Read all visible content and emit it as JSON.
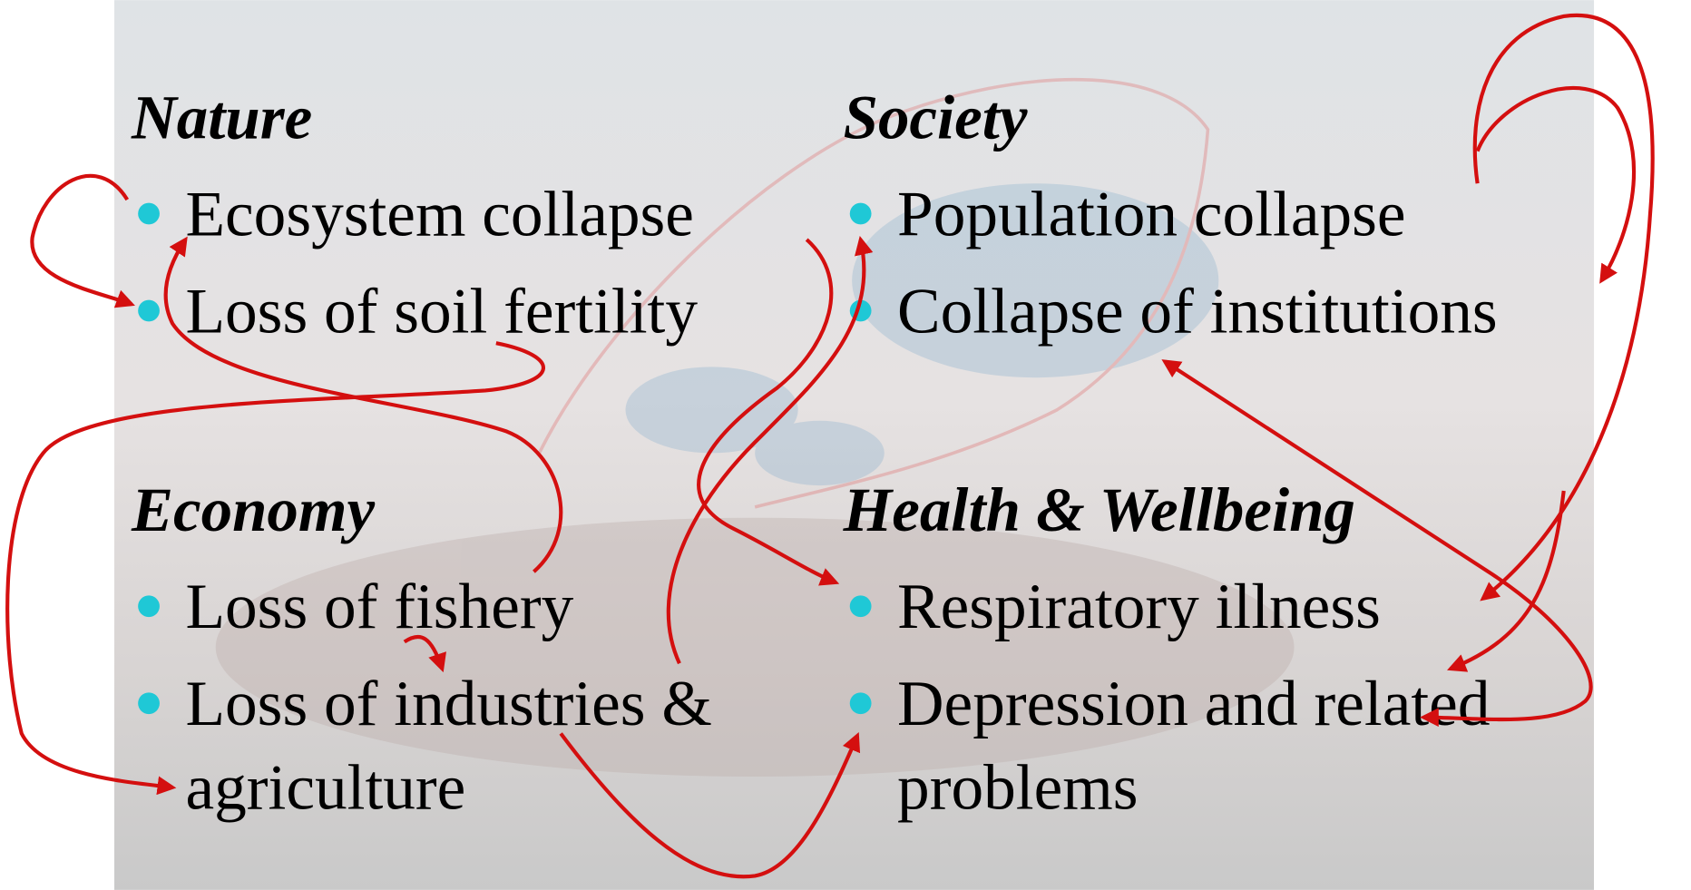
{
  "sections": [
    {
      "heading": "Nature",
      "items": [
        {
          "lines": [
            "Ecosystem collapse"
          ]
        },
        {
          "lines": [
            "Loss of soil fertility"
          ]
        }
      ]
    },
    {
      "heading": "Society",
      "items": [
        {
          "lines": [
            "Population collapse"
          ]
        },
        {
          "lines": [
            "Collapse of institutions"
          ]
        }
      ]
    },
    {
      "heading": "Economy",
      "items": [
        {
          "lines": [
            "Loss of fishery"
          ]
        },
        {
          "lines": [
            "Loss of industries &",
            "agriculture"
          ]
        }
      ]
    },
    {
      "heading": "Health & Wellbeing",
      "items": [
        {
          "lines": [
            "Respiratory illness"
          ]
        },
        {
          "lines": [
            "Depression and related",
            "problems"
          ]
        }
      ]
    }
  ]
}
